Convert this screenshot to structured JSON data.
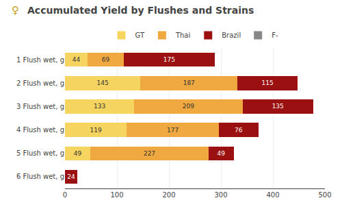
{
  "chart_data": {
    "type": "bar",
    "orientation": "horizontal",
    "stacked": true,
    "title": "Accumulated Yield by Flushes and Strains",
    "annotations": [
      {
        "text": "♀"
      }
    ],
    "categories": [
      "1 Flush wet, g",
      "2 Flush wet, g",
      "3 Flush wet, g",
      "4 Flush wet, g",
      "5 Flush wet, g",
      "6 Flush wet, g"
    ],
    "series": [
      {
        "name": "GT",
        "color": "#f5d560",
        "values": [
          44,
          145,
          133,
          119,
          49,
          0
        ]
      },
      {
        "name": "Thai",
        "color": "#f0a840",
        "values": [
          69,
          187,
          209,
          177,
          227,
          0
        ]
      },
      {
        "name": "Brazil",
        "color": "#9b1010",
        "values": [
          175,
          115,
          135,
          76,
          49,
          24
        ]
      },
      {
        "name": "F-",
        "color": "#888888",
        "values": [
          0,
          0,
          0,
          0,
          0,
          0
        ]
      }
    ],
    "xlim": [
      0,
      500
    ],
    "xticks": [
      0,
      100,
      200,
      300,
      400,
      500
    ],
    "grid": true,
    "legend": "top",
    "data_labels": true
  }
}
